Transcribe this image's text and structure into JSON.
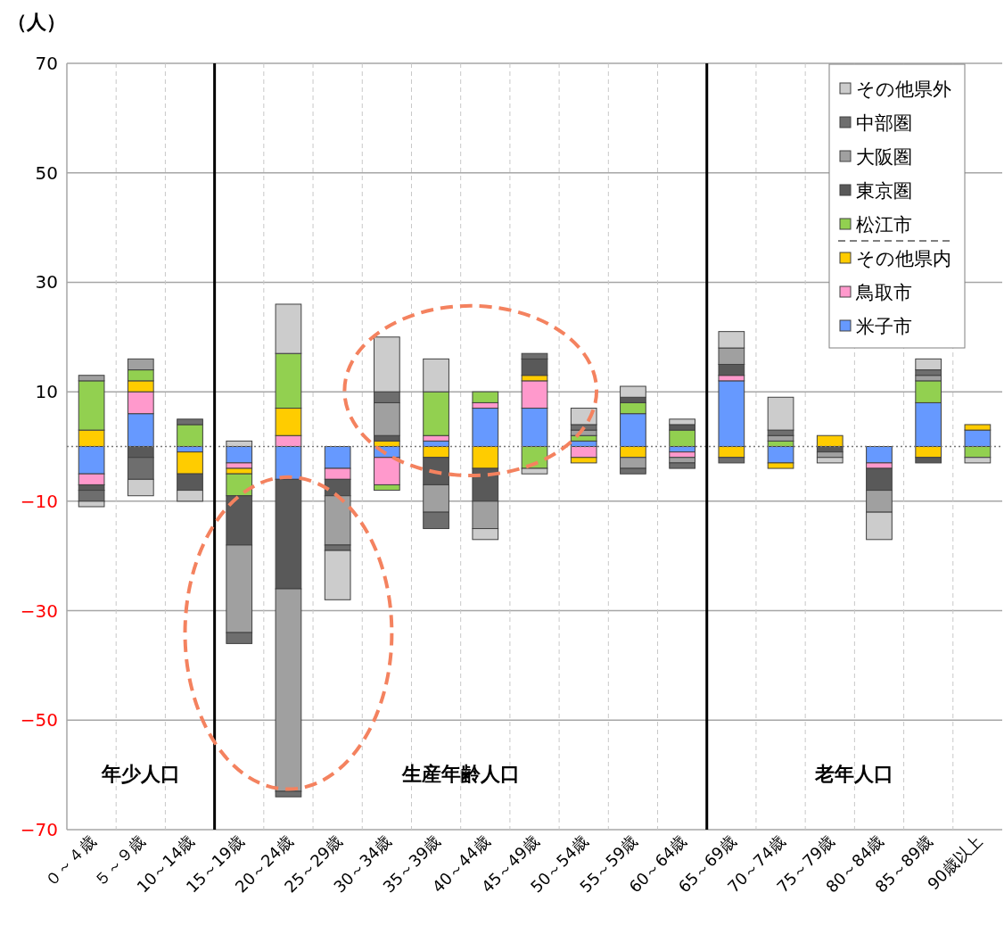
{
  "chart_data": {
    "type": "bar",
    "stacked": true,
    "ylabel": "（人）",
    "categories": [
      "０～４歳",
      "５～９歳",
      "10～14歳",
      "15～19歳",
      "20～24歳",
      "25～29歳",
      "30～34歳",
      "35～39歳",
      "40～44歳",
      "45～49歳",
      "50～54歳",
      "55～59歳",
      "60～64歳",
      "65～69歳",
      "70～74歳",
      "75～79歳",
      "80～84歳",
      "85～89歳",
      "90歳以上"
    ],
    "series": [
      {
        "name": "米子市",
        "color": "#6699ff",
        "values": [
          -5,
          6,
          -1,
          -3,
          -6,
          -4,
          -2,
          1,
          7,
          7,
          1,
          6,
          -1,
          12,
          -3,
          null,
          -3,
          8,
          3
        ]
      },
      {
        "name": "鳥取市",
        "color": "#ff99cc",
        "values": [
          -2,
          4,
          null,
          -1,
          2,
          -2,
          -5,
          1,
          1,
          5,
          -2,
          null,
          -1,
          1,
          null,
          null,
          -1,
          null,
          null
        ]
      },
      {
        "name": "その他県内",
        "color": "#ffcc00",
        "values": [
          3,
          2,
          -4,
          -1,
          5,
          null,
          1,
          -2,
          -4,
          1,
          -1,
          -2,
          null,
          -2,
          -1,
          2,
          null,
          -2,
          1
        ]
      },
      {
        "name": "松江市",
        "color": "#92d050",
        "values": [
          9,
          2,
          4,
          -4,
          10,
          null,
          -1,
          8,
          2,
          -4,
          1,
          2,
          3,
          null,
          1,
          null,
          null,
          4,
          -2
        ]
      },
      {
        "name": "東京圏",
        "color": "#595959",
        "values": [
          -1,
          -2,
          -3,
          -9,
          -20,
          -3,
          1,
          -5,
          -6,
          3,
          null,
          1,
          1,
          2,
          null,
          -1,
          -4,
          -1,
          null
        ]
      },
      {
        "name": "大阪圏",
        "color": "#a0a0a0",
        "values": [
          1,
          2,
          null,
          -16,
          -37,
          -9,
          6,
          -5,
          -5,
          null,
          1,
          -2,
          -1,
          3,
          1,
          -1,
          -4,
          1,
          null
        ]
      },
      {
        "name": "中部圏",
        "color": "#6e6e6e",
        "values": [
          -2,
          -4,
          1,
          -2,
          -1,
          -1,
          2,
          -3,
          null,
          1,
          1,
          -1,
          -1,
          -1,
          1,
          null,
          null,
          1,
          null
        ]
      },
      {
        "name": "その他県外",
        "color": "#cccccc",
        "values": [
          -1,
          -3,
          -2,
          1,
          9,
          -9,
          10,
          6,
          -2,
          -1,
          3,
          2,
          1,
          3,
          6,
          -1,
          -5,
          2,
          -1
        ]
      }
    ],
    "ylim": [
      -70,
      70
    ],
    "yticks": [
      -70,
      -50,
      -30,
      -10,
      10,
      30,
      50,
      70
    ],
    "grid": true,
    "legend": "top right",
    "ref_lines": [
      {
        "axis": "y",
        "value": 0,
        "line_style": "dotted"
      }
    ],
    "annotations": [
      "年少人口",
      "生産年齢人口",
      "老年人口"
    ]
  }
}
